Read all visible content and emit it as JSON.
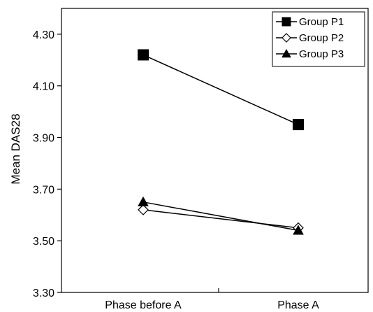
{
  "chart_data": {
    "type": "line",
    "title": "",
    "xlabel": "",
    "ylabel": "Mean DAS28",
    "categories": [
      "Phase before A",
      "Phase A"
    ],
    "ylim": [
      3.3,
      4.4
    ],
    "yticks": [
      "3.30",
      "3.50",
      "3.70",
      "3.90",
      "4.10",
      "4.30"
    ],
    "grid": false,
    "legend_position": "top-right",
    "series": [
      {
        "name": "Group P1",
        "marker": "square-filled",
        "values": [
          4.22,
          3.95
        ]
      },
      {
        "name": "Group P2",
        "marker": "diamond-open",
        "values": [
          3.62,
          3.55
        ]
      },
      {
        "name": "Group P3",
        "marker": "triangle-filled",
        "values": [
          3.65,
          3.54
        ]
      }
    ]
  }
}
